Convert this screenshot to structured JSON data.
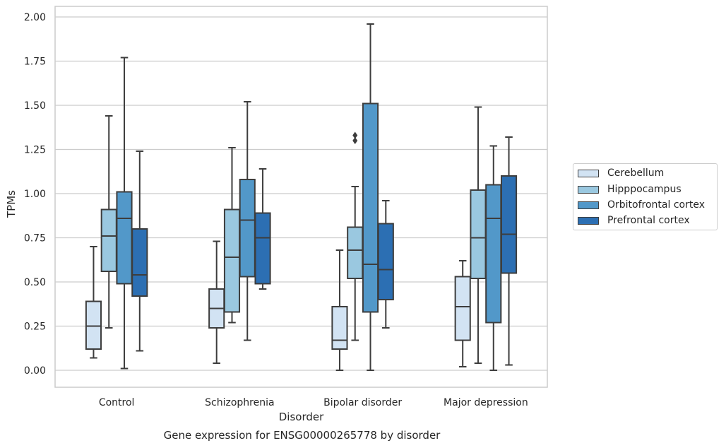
{
  "chart_data": {
    "type": "box",
    "title": "Gene expression for ENSG00000265778 by disorder",
    "xlabel": "Disorder",
    "ylabel": "TPMs",
    "ylim": [
      -0.1,
      2.06
    ],
    "yticks": [
      "0.00",
      "0.25",
      "0.50",
      "0.75",
      "1.00",
      "1.25",
      "1.50",
      "1.75",
      "2.00"
    ],
    "grid": "horizontal",
    "legend_position": "right",
    "categories": [
      "Control",
      "Schizophrenia",
      "Bipolar disorder",
      "Major depression"
    ],
    "series": [
      {
        "name": "Cerebellum",
        "color": "#d2e3f3",
        "boxes": [
          {
            "whisker_low": 0.07,
            "q1": 0.12,
            "median": 0.25,
            "q3": 0.39,
            "whisker_high": 0.7,
            "outliers": []
          },
          {
            "whisker_low": 0.04,
            "q1": 0.24,
            "median": 0.35,
            "q3": 0.46,
            "whisker_high": 0.73,
            "outliers": []
          },
          {
            "whisker_low": 0.0,
            "q1": 0.12,
            "median": 0.17,
            "q3": 0.36,
            "whisker_high": 0.68,
            "outliers": []
          },
          {
            "whisker_low": 0.02,
            "q1": 0.17,
            "median": 0.36,
            "q3": 0.53,
            "whisker_high": 0.62,
            "outliers": []
          }
        ]
      },
      {
        "name": "Hipppocampus",
        "color": "#9ac8e0",
        "boxes": [
          {
            "whisker_low": 0.24,
            "q1": 0.56,
            "median": 0.76,
            "q3": 0.91,
            "whisker_high": 1.44,
            "outliers": []
          },
          {
            "whisker_low": 0.27,
            "q1": 0.33,
            "median": 0.64,
            "q3": 0.91,
            "whisker_high": 1.26,
            "outliers": []
          },
          {
            "whisker_low": 0.17,
            "q1": 0.52,
            "median": 0.68,
            "q3": 0.81,
            "whisker_high": 1.04,
            "outliers": [
              1.3,
              1.33
            ]
          },
          {
            "whisker_low": 0.04,
            "q1": 0.52,
            "median": 0.75,
            "q3": 1.02,
            "whisker_high": 1.49,
            "outliers": []
          }
        ]
      },
      {
        "name": "Orbitofrontal cortex",
        "color": "#5298c9",
        "boxes": [
          {
            "whisker_low": 0.01,
            "q1": 0.49,
            "median": 0.86,
            "q3": 1.01,
            "whisker_high": 1.77,
            "outliers": []
          },
          {
            "whisker_low": 0.17,
            "q1": 0.53,
            "median": 0.85,
            "q3": 1.08,
            "whisker_high": 1.52,
            "outliers": []
          },
          {
            "whisker_low": 0.0,
            "q1": 0.33,
            "median": 0.6,
            "q3": 1.51,
            "whisker_high": 1.96,
            "outliers": []
          },
          {
            "whisker_low": 0.0,
            "q1": 0.27,
            "median": 0.86,
            "q3": 1.05,
            "whisker_high": 1.27,
            "outliers": []
          }
        ]
      },
      {
        "name": "Prefrontal cortex",
        "color": "#2c6fb3",
        "boxes": [
          {
            "whisker_low": 0.11,
            "q1": 0.42,
            "median": 0.54,
            "q3": 0.8,
            "whisker_high": 1.24,
            "outliers": []
          },
          {
            "whisker_low": 0.46,
            "q1": 0.49,
            "median": 0.75,
            "q3": 0.89,
            "whisker_high": 1.14,
            "outliers": []
          },
          {
            "whisker_low": 0.24,
            "q1": 0.4,
            "median": 0.57,
            "q3": 0.83,
            "whisker_high": 0.96,
            "outliers": []
          },
          {
            "whisker_low": 0.03,
            "q1": 0.55,
            "median": 0.77,
            "q3": 1.1,
            "whisker_high": 1.32,
            "outliers": []
          }
        ]
      }
    ]
  }
}
